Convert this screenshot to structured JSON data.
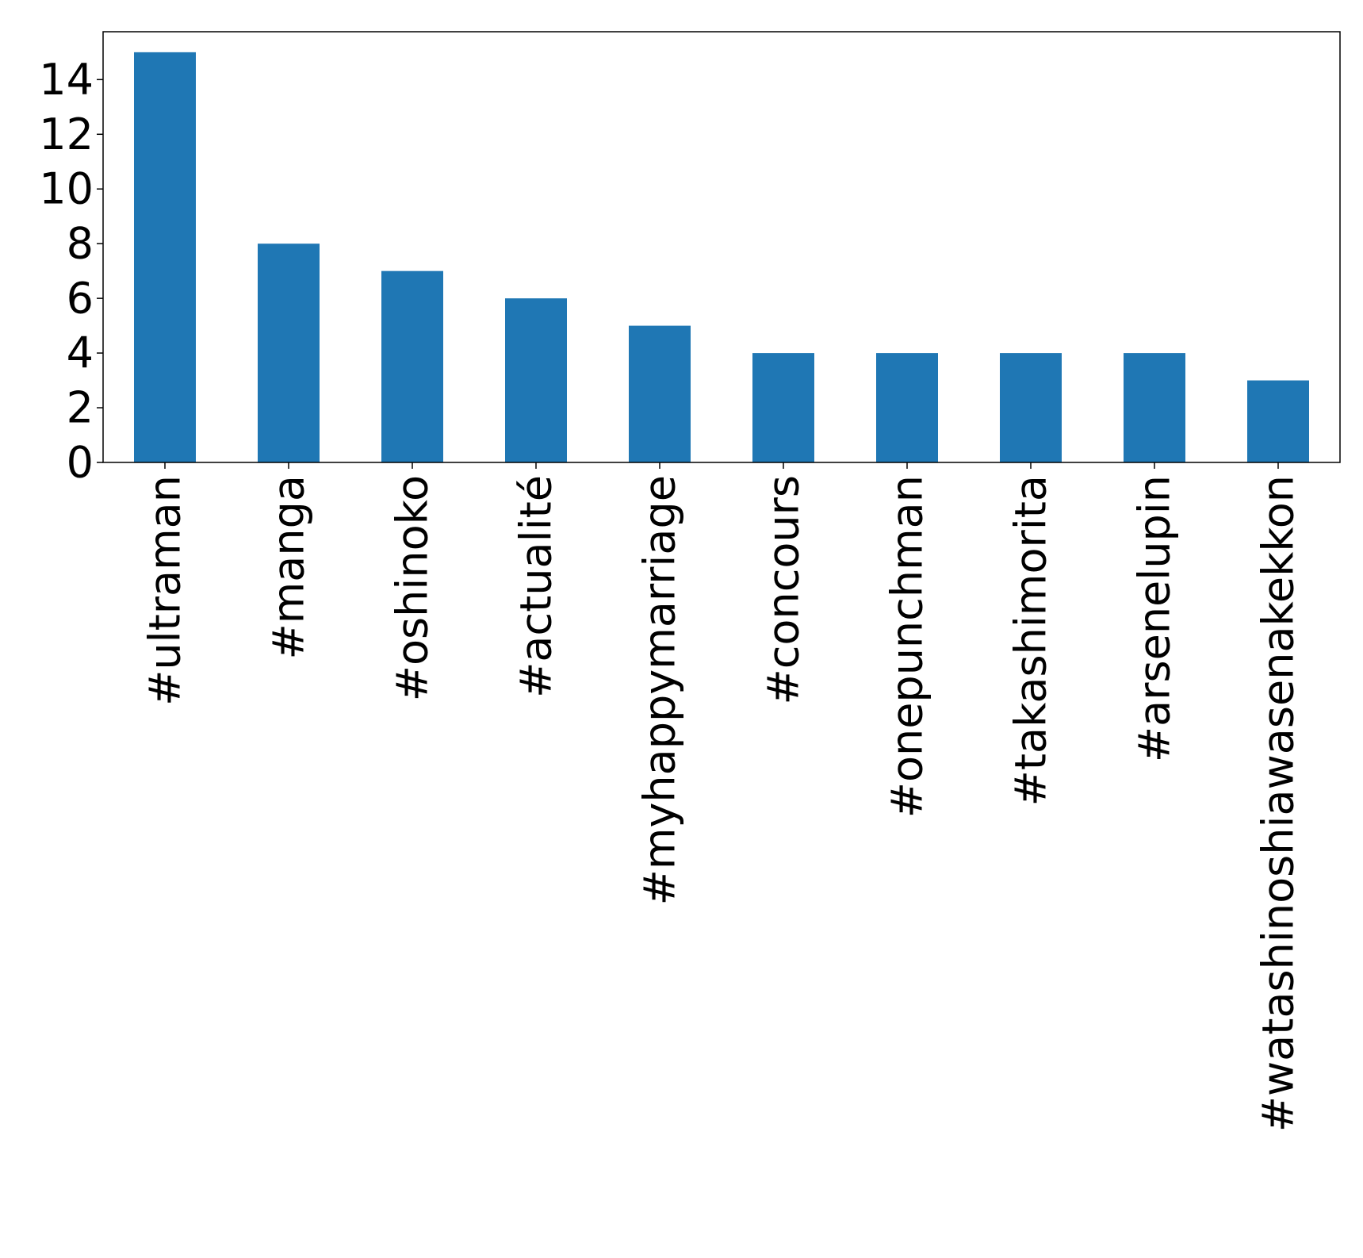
{
  "chart_data": {
    "type": "bar",
    "categories": [
      "#ultraman",
      "#manga",
      "#oshinoko",
      "#actualité",
      "#myhappymarriage",
      "#concours",
      "#onepunchman",
      "#takashimorita",
      "#arsenelupin",
      "#watashinoshiawasenakekkon"
    ],
    "values": [
      15,
      8,
      7,
      6,
      5,
      4,
      4,
      4,
      4,
      3
    ],
    "title": "",
    "xlabel": "",
    "ylabel": "",
    "ylim": [
      0,
      15.75
    ],
    "yticks": [
      0,
      2,
      4,
      6,
      8,
      10,
      12,
      14
    ],
    "bar_color": "#1f77b4",
    "grid": false,
    "x_tick_rotation": "vertical"
  }
}
